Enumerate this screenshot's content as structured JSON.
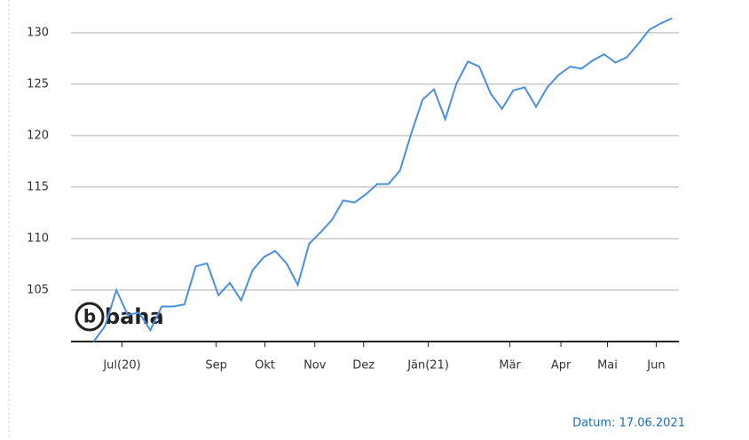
{
  "chart_data": {
    "type": "line",
    "x": [
      0,
      1,
      2,
      3,
      4,
      5,
      6,
      7,
      8,
      9,
      10,
      11,
      12,
      13,
      14,
      15,
      16,
      17,
      18,
      19,
      20,
      21,
      22,
      23,
      24,
      25,
      26,
      27,
      28,
      29,
      30,
      31,
      32,
      33,
      34,
      35,
      36,
      37,
      38,
      39,
      40,
      41,
      42,
      43,
      44,
      45,
      46,
      47,
      48,
      49,
      50,
      51
    ],
    "series": [
      {
        "color": "#4a8fe0",
        "values": [
          100.0,
          101.5,
          105.0,
          102.6,
          102.8,
          101.1,
          103.4,
          103.4,
          103.6,
          107.3,
          107.6,
          104.5,
          105.7,
          104.0,
          106.9,
          108.2,
          108.8,
          107.6,
          105.5,
          109.5,
          110.6,
          111.8,
          113.7,
          113.5,
          114.3,
          115.3,
          115.3,
          116.6,
          120.2,
          123.5,
          124.5,
          121.6,
          125.1,
          127.2,
          126.7,
          124.1,
          122.6,
          124.4,
          124.7,
          122.8,
          124.7,
          125.9,
          126.7,
          126.5,
          127.3,
          127.9,
          127.1,
          127.6,
          128.9,
          130.3,
          130.9,
          131.4
        ]
      }
    ],
    "xlim": [
      -2,
      51.6
    ],
    "xticks": [
      {
        "value": 2.5,
        "label": "Jul(20)"
      },
      {
        "value": 10.8,
        "label": "Sep"
      },
      {
        "value": 15.1,
        "label": "Okt"
      },
      {
        "value": 19.5,
        "label": "Nov"
      },
      {
        "value": 23.8,
        "label": "Dez"
      },
      {
        "value": 29.5,
        "label": "Jän(21)"
      },
      {
        "value": 36.7,
        "label": "Mär"
      },
      {
        "value": 41.2,
        "label": "Apr"
      },
      {
        "value": 45.3,
        "label": "Mai"
      },
      {
        "value": 49.6,
        "label": "Jun"
      }
    ],
    "ylim": [
      100,
      132.1
    ],
    "yticks": [
      105,
      110,
      115,
      120,
      125,
      130
    ],
    "grid": true,
    "logo": "baha",
    "logo_letter": "b",
    "footer": "Datum: 17.06.2021"
  }
}
